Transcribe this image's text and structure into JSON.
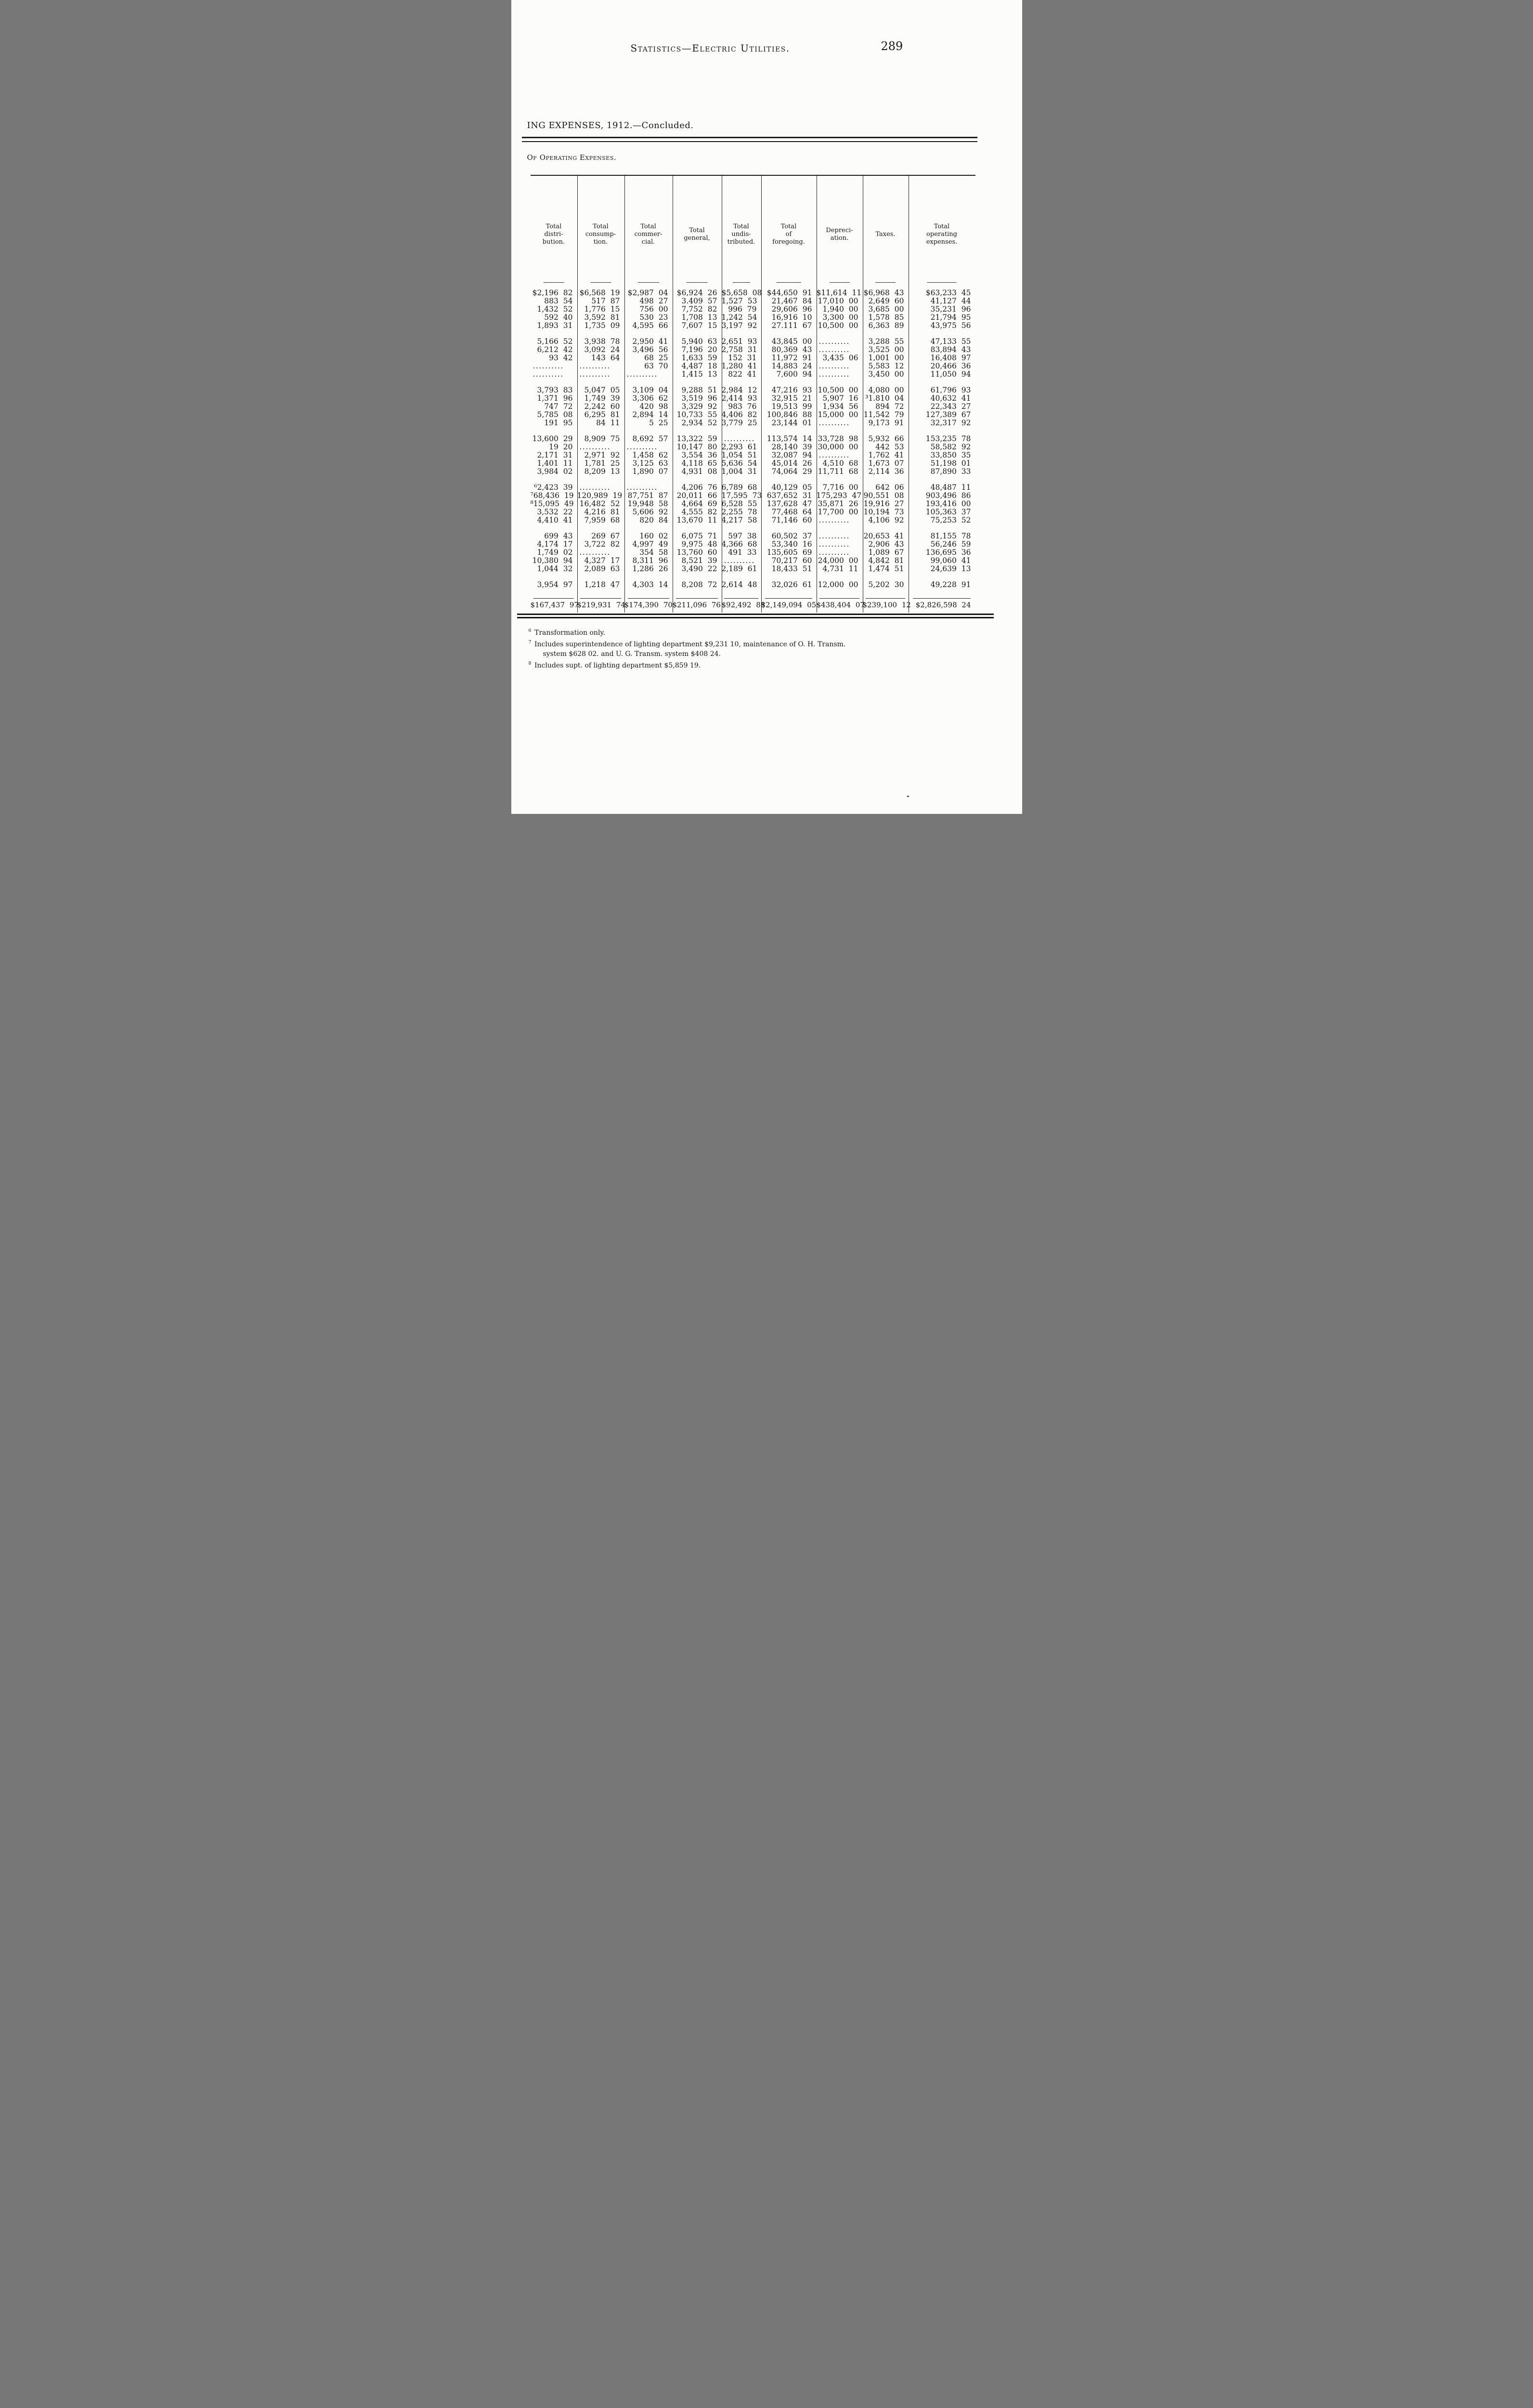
{
  "page": {
    "header_title": "Statistics—Electric Utilities.",
    "page_number": "289",
    "caption": "ING EXPENSES, 1912.—Concluded.",
    "section_heading": "Of Operating Expenses."
  },
  "table": {
    "dots": "..........",
    "columns": [
      "Total\ndistri-\nbution.",
      "Total\nconsump-\ntion.",
      "Total\ncommer-\ncial.",
      "Total\ngeneral,",
      "Total\nundis-\ntributed.",
      "Total\nof\nforegoing.",
      "Depreci-\nation.",
      "Taxes.",
      "Total\noperating\nexpenses."
    ],
    "row_groups": [
      [
        [
          "$2,196 82",
          "$6,568 19",
          "$2,987 04",
          "$6,924 26",
          "$5,658 08",
          "$44,650 91",
          "$11,614 11",
          "$6,968 43",
          "$63,233 45"
        ],
        [
          "883 54",
          "517 87",
          "498 27",
          "3.409 57",
          "1,527 53",
          "21,467 84",
          "17,010 00",
          "2,649 60",
          "41,127 44"
        ],
        [
          "1,432 52",
          "1,776 15",
          "756 00",
          "7,752 82",
          "996 79",
          "29,606 96",
          "1,940 00",
          "3,685 00",
          "35,231 96"
        ],
        [
          "592 40",
          "3,592 81",
          "530 23",
          "1,708 13",
          "1,242 54",
          "16,916 10",
          "3,300 00",
          "1,578 85",
          "21,794 95"
        ],
        [
          "1,893 31",
          "1,735 09",
          "4,595 66",
          "7,607 15",
          "3,197 92",
          "27.111 67",
          "10,500 00",
          "6,363 89",
          "43,975 56"
        ]
      ],
      [
        [
          "5,166 52",
          "3,938 78",
          "2,950 41",
          "5,940 63",
          "2,651 93",
          "43,845 00",
          "..........",
          "3,288 55",
          "47,133 55"
        ],
        [
          "6,212 42",
          "3,092 24",
          "3,496 56",
          "7,196 20",
          "2,758 31",
          "80,369 43",
          "..........",
          "3,525 00",
          "83,894 43"
        ],
        [
          "93 42",
          "143 64",
          "68 25",
          "1,633 59",
          "152 31",
          "11,972 91",
          "3,435 06",
          "1,001 00",
          "16,408 97"
        ],
        [
          "..........",
          "..........",
          "63 70",
          "4,487 18",
          "1,280 41",
          "14,883 24",
          "..........",
          "5,583 12",
          "20,466 36"
        ],
        [
          "..........",
          "..........",
          "..........",
          "1,415 13",
          "822 41",
          "7,600 94",
          "..........",
          "3,450 00",
          "11,050 94"
        ]
      ],
      [
        [
          "3,793 83",
          "5,047 05",
          "3,109 04",
          "9,288 51",
          "2,984 12",
          "47,216 93",
          "10,500 00",
          "4,080 00",
          "61,796 93"
        ],
        [
          "1,371 96",
          "1,749 39",
          "3,306 62",
          "3,519 96",
          "2,414 93",
          "32,915 21",
          "5,907 16",
          "³1.810 04",
          "40,632 41"
        ],
        [
          "747 72",
          "2,242 60",
          "420 98",
          "3,329 92",
          "983 76",
          "19,513 99",
          "1,934 56",
          "894 72",
          "22,343 27"
        ],
        [
          "5,785 08",
          "6,295 81",
          "2,894 14",
          "10,733 55",
          "4,406 82",
          "100,846 88",
          "15,000 00",
          "11,542 79",
          "127,389 67"
        ],
        [
          "191 95",
          "84 11",
          "5 25",
          "2,934 52",
          "3,779 25",
          "23,144 01",
          "..........",
          "9,173 91",
          "32,317 92"
        ]
      ],
      [
        [
          "13,600 29",
          "8,909 75",
          "8,692 57",
          "13,322 59",
          "..........",
          "113,574 14",
          "33,728 98",
          "5,932 66",
          "153,235 78"
        ],
        [
          "19 20",
          "..........",
          "..........",
          "10,147 80",
          "2,293 61",
          "28,140 39",
          "30,000 00",
          "442 53",
          "58,582 92"
        ],
        [
          "2,171 31",
          "2,971 92",
          "1,458 62",
          "3,554 36",
          "1,054 51",
          "32,087 94",
          "..........",
          "1,762 41",
          "33,850 35"
        ],
        [
          "1,401 11",
          "1,781 25",
          "3,125 63",
          "4,118 65",
          "5,636 54",
          "45,014 26",
          "4,510 68",
          "1,673 07",
          "51,198 01"
        ],
        [
          "3,984 02",
          "8,209 13",
          "1,890 07",
          "4,931 08",
          "1,004 31",
          "74,064 29",
          "11,711 68",
          "2,114 36",
          "87,890 33"
        ]
      ],
      [
        [
          "⁶2,423 39",
          "..........",
          "..........",
          "4,206 76",
          "6,789 68",
          "40,129 05",
          "7,716 00",
          "642 06",
          "48,487 11"
        ],
        [
          "⁷68,436 19",
          "120,989 19",
          "87,751 87",
          "20,011 66",
          "17,595 73",
          "637,652 31",
          "175,293 47",
          "90,551 08",
          "903,496 86"
        ],
        [
          "⁸15,095 49",
          "16,482 52",
          "19,948 58",
          "4,664 69",
          "6,528 55",
          "137,628 47",
          "35,871 26",
          "19,916 27",
          "193,416 00"
        ],
        [
          "3,532 22",
          "4,216 81",
          "5,606 92",
          "4,555 82",
          "2,255 78",
          "77,468 64",
          "17,700 00",
          "10,194 73",
          "105,363 37"
        ],
        [
          "4,410 41",
          "7,959 68",
          "820 84",
          "13,670 11",
          "4,217 58",
          "71,146 60",
          "..........",
          "4,106 92",
          "75,253 52"
        ]
      ],
      [
        [
          "699 43",
          "269 67",
          "160 02",
          "6,075 71",
          "597 38",
          "60,502 37",
          "..........",
          "20,653 41",
          "81,155 78"
        ],
        [
          "4,174 17",
          "3,722 82",
          "4,997 49",
          "9,975 48",
          "4,366 68",
          "53,340 16",
          "..........",
          "2,906 43",
          "56,246 59"
        ],
        [
          "1,749 02",
          "..........",
          "354 58",
          "13,760 60",
          "491 33",
          "135,605 69",
          "..........",
          "1,089 67",
          "136,695 36"
        ],
        [
          "10,380 94",
          "4,327 17",
          "8,311 96",
          "8,521 39",
          "..........",
          "70,217 60",
          "24,000 00",
          "4,842 81",
          "99,060 41"
        ],
        [
          "1,044 32",
          "2,089 63",
          "1,286 26",
          "3,490 22",
          "2,189 61",
          "18,433 51",
          "4,731 11",
          "1,474 51",
          "24,639 13"
        ]
      ],
      [
        [
          "3,954 97",
          "1,218 47",
          "4,303 14",
          "8,208 72",
          "2,614 48",
          "32,026 61",
          "12,000 00",
          "5,202 30",
          "49,228 91"
        ]
      ]
    ],
    "totals": [
      "$167,437 97",
      "$219,931 74",
      "$174,390 70",
      "$211,096 76",
      "$92,492 88",
      "$2,149,094 05",
      "$438,404 07",
      "$239,100 12",
      "$2,826,598 24"
    ]
  },
  "footnotes": [
    {
      "marker": "6",
      "lines": [
        "Transformation only."
      ]
    },
    {
      "marker": "7",
      "lines": [
        "Includes superintendence of lighting department $9,231 10, maintenance of O. H. Transm.",
        "system $628 02. and U. G. Transm. system $408 24."
      ]
    },
    {
      "marker": "8",
      "lines": [
        "Includes supt. of lighting department $5,859 19."
      ]
    }
  ]
}
